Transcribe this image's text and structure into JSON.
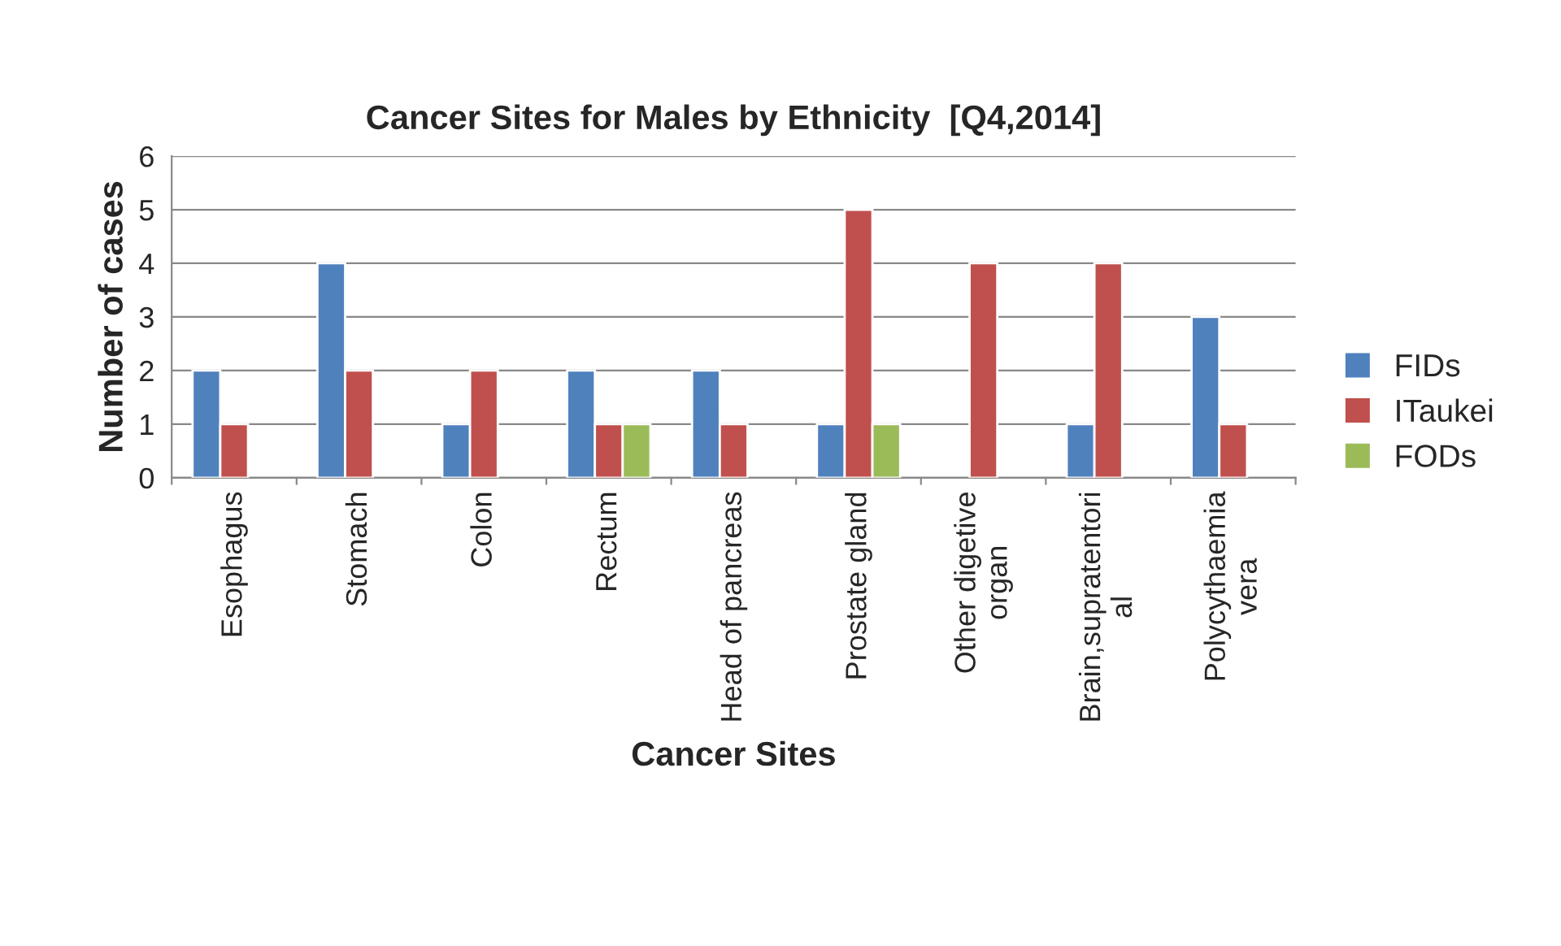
{
  "chart_data": {
    "type": "bar",
    "title": "Cancer Sites for Males by Ethnicity  [Q4,2014]",
    "xlabel": "Cancer Sites",
    "ylabel": "Number of cases",
    "categories": [
      "Esophagus",
      "Stomach",
      "Colon",
      "Rectum",
      "Head of pancreas",
      "Prostate gland",
      "Other digetive\norgan",
      "Brain,supratentori\nal",
      "Polycythaemia\nvera"
    ],
    "series": [
      {
        "name": "FIDs",
        "color": "#4f81bd",
        "values": [
          2,
          4,
          1,
          2,
          2,
          1,
          null,
          1,
          3
        ]
      },
      {
        "name": "ITaukei",
        "color": "#c0504d",
        "values": [
          1,
          2,
          2,
          1,
          1,
          5,
          4,
          4,
          1
        ]
      },
      {
        "name": "FODs",
        "color": "#9bbb59",
        "values": [
          null,
          null,
          null,
          1,
          null,
          1,
          null,
          null,
          null
        ]
      }
    ],
    "ylim": [
      0,
      6
    ],
    "yticks": [
      0,
      1,
      2,
      3,
      4,
      5,
      6
    ],
    "grid": "y",
    "legend": "right"
  }
}
